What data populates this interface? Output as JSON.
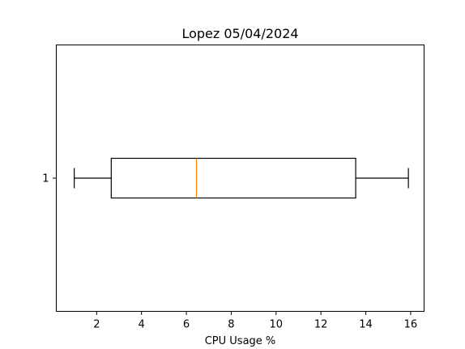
{
  "chart_data": {
    "type": "boxplot",
    "orientation": "horizontal",
    "title": "Lopez 05/04/2024",
    "xlabel": "CPU Usage %",
    "ylabel": "",
    "xlim": [
      0.2,
      16.6
    ],
    "x_ticks": [
      2,
      4,
      6,
      8,
      10,
      12,
      14,
      16
    ],
    "y_ticks": [
      "1"
    ],
    "grid": false,
    "boxes": [
      {
        "label": "1",
        "whisker_low": 1.0,
        "q1": 2.65,
        "median": 6.45,
        "q3": 13.55,
        "whisker_high": 15.9
      }
    ],
    "colors": {
      "box": "#000000",
      "median": "#ff7f0e",
      "whisker": "#000000"
    }
  }
}
